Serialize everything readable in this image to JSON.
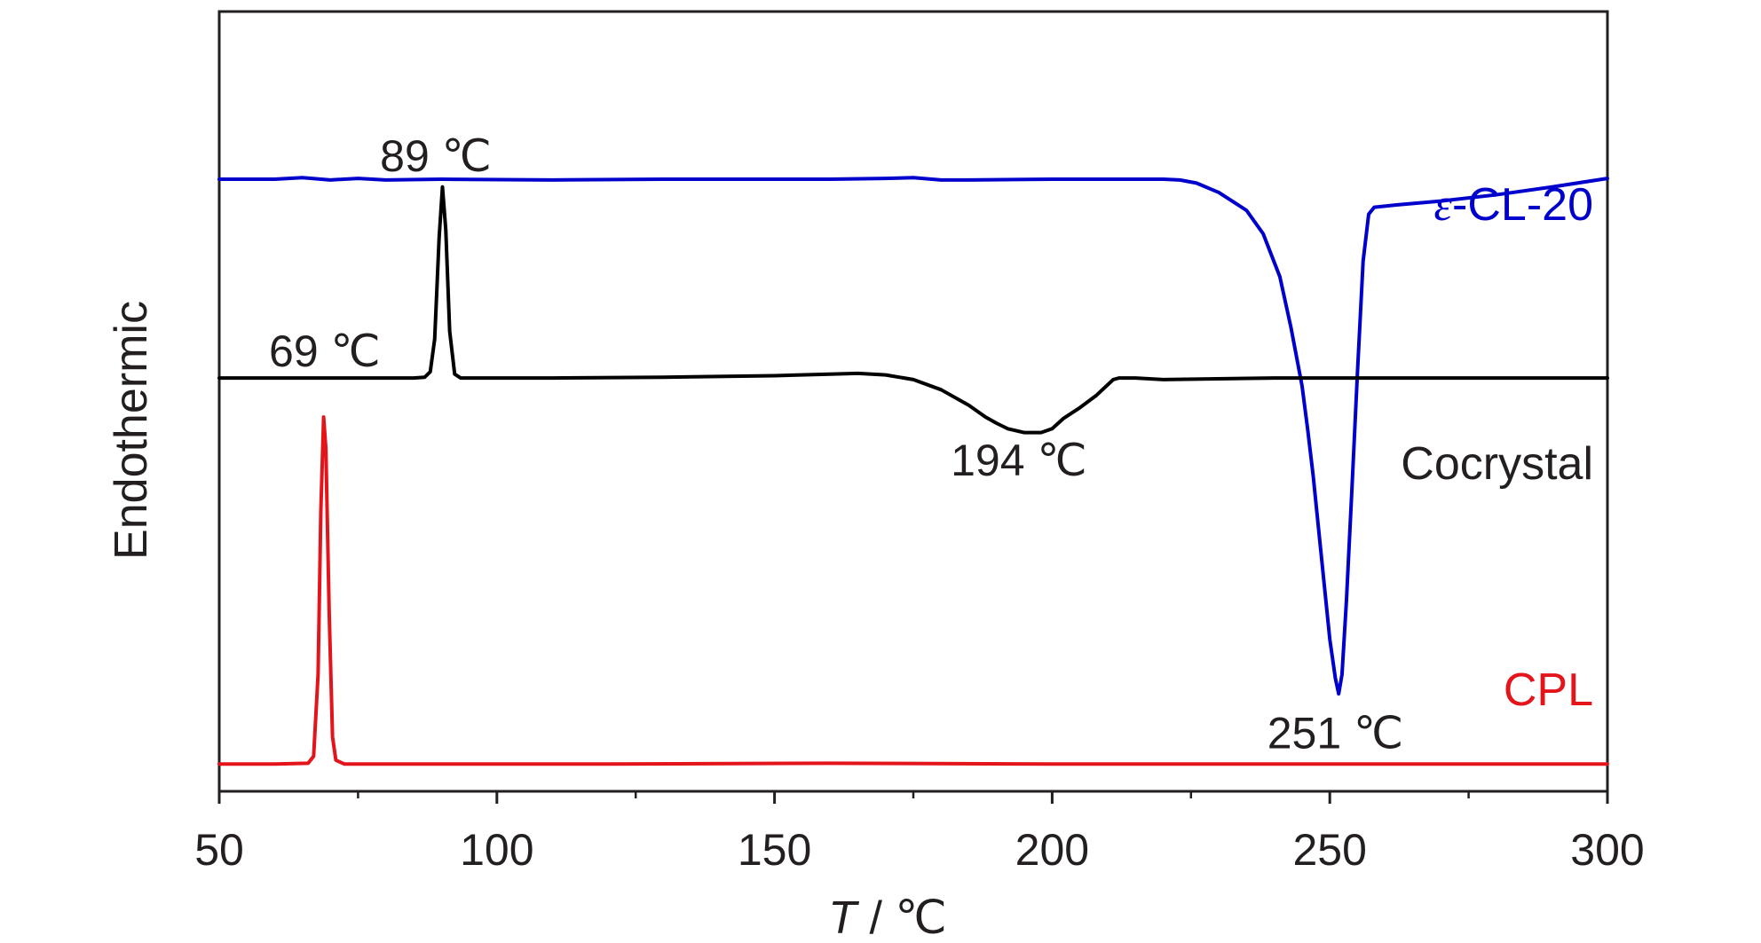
{
  "chart_data": {
    "type": "line",
    "title": "",
    "xlabel": "T / ℃",
    "xlabel_var": "T",
    "xlabel_unit": " / ℃",
    "ylabel": "Endothermic",
    "xlim": [
      50,
      300
    ],
    "ylim": [
      0,
      10
    ],
    "x_ticks": [
      50,
      100,
      150,
      200,
      250,
      300
    ],
    "x_tick_labels": [
      "50",
      "100",
      "150",
      "200",
      "250",
      "300"
    ],
    "x_minor_ticks": [
      75,
      125,
      175,
      225,
      275
    ],
    "grid": false,
    "legend": "none",
    "series": [
      {
        "name": "ε-CL-20",
        "name_prefix": "ε",
        "name_suffix": "-CL-20",
        "color": "#0000cc",
        "x": [
          50,
          60,
          65,
          70,
          75,
          80,
          90,
          110,
          130,
          150,
          160,
          170,
          175,
          180,
          185,
          200,
          215,
          220,
          223,
          226,
          230,
          235,
          238,
          241,
          243,
          245,
          246,
          247,
          248,
          249,
          250,
          251,
          251.6,
          252.2,
          253,
          254,
          255,
          256,
          257,
          258,
          262,
          270,
          280,
          290,
          300
        ],
        "y": [
          7.85,
          7.85,
          7.87,
          7.84,
          7.86,
          7.84,
          7.85,
          7.84,
          7.85,
          7.85,
          7.85,
          7.86,
          7.87,
          7.84,
          7.84,
          7.85,
          7.85,
          7.85,
          7.84,
          7.8,
          7.68,
          7.45,
          7.15,
          6.6,
          5.95,
          5.2,
          4.65,
          4.05,
          3.35,
          2.65,
          1.95,
          1.45,
          1.25,
          1.5,
          2.45,
          3.9,
          5.4,
          6.8,
          7.4,
          7.49,
          7.52,
          7.57,
          7.65,
          7.75,
          7.86
        ]
      },
      {
        "name": "Cocrystal",
        "color": "#000000",
        "x": [
          50,
          70,
          85,
          87,
          88,
          88.8,
          89.6,
          90.2,
          90.8,
          91.5,
          92.4,
          93.5,
          96,
          110,
          130,
          150,
          160,
          165,
          170,
          175,
          180,
          185,
          188,
          190,
          192,
          195,
          198,
          200,
          202,
          205,
          208,
          211,
          212,
          215,
          220,
          240,
          260,
          300
        ],
        "y": [
          5.3,
          5.3,
          5.3,
          5.31,
          5.38,
          5.8,
          7.1,
          7.75,
          7.2,
          5.9,
          5.35,
          5.3,
          5.3,
          5.3,
          5.31,
          5.33,
          5.35,
          5.36,
          5.34,
          5.28,
          5.15,
          4.95,
          4.8,
          4.72,
          4.65,
          4.6,
          4.6,
          4.65,
          4.78,
          4.92,
          5.08,
          5.28,
          5.3,
          5.3,
          5.28,
          5.3,
          5.3,
          5.3
        ]
      },
      {
        "name": "CPL",
        "color": "#e4141b",
        "x": [
          50,
          60,
          66,
          67,
          67.8,
          68.3,
          68.8,
          69.2,
          69.8,
          70.4,
          71,
          72.5,
          80,
          120,
          160,
          200,
          240,
          280,
          300
        ],
        "y": [
          0.35,
          0.35,
          0.36,
          0.45,
          1.5,
          3.6,
          4.8,
          4.4,
          2.3,
          0.7,
          0.4,
          0.35,
          0.35,
          0.35,
          0.36,
          0.35,
          0.35,
          0.35,
          0.35
        ]
      }
    ],
    "annotations": [
      {
        "text": "89 ℃",
        "x": 89,
        "y": 7.95
      },
      {
        "text": "69 ℃",
        "x": 69,
        "y": 5.45
      },
      {
        "text": "194 ℃",
        "x": 194,
        "y": 4.05
      },
      {
        "text": "251 ℃",
        "x": 251,
        "y": 0.55
      }
    ]
  }
}
